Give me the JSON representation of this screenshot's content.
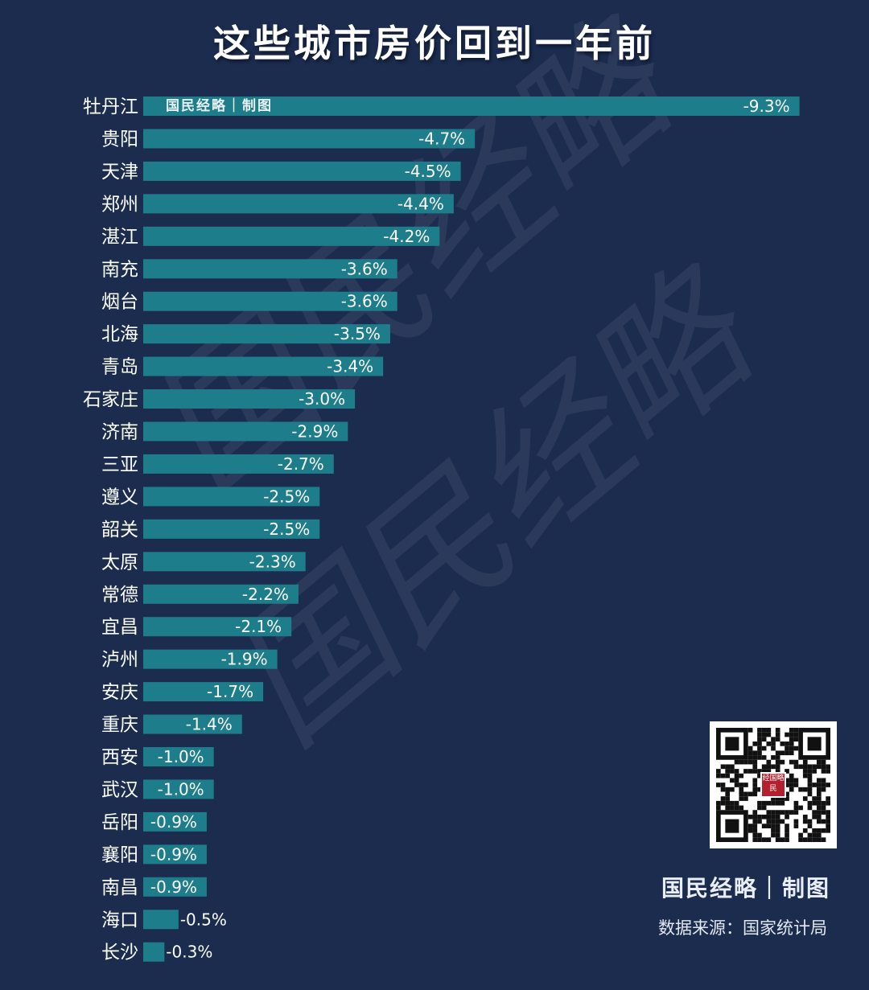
{
  "chart_data": {
    "type": "bar",
    "orientation": "horizontal",
    "title": "这些城市房价回到一年前",
    "categories": [
      "牡丹江",
      "贵阳",
      "天津",
      "郑州",
      "湛江",
      "南充",
      "烟台",
      "北海",
      "青岛",
      "石家庄",
      "济南",
      "三亚",
      "遵义",
      "韶关",
      "太原",
      "常德",
      "宜昌",
      "泸州",
      "安庆",
      "重庆",
      "西安",
      "武汉",
      "岳阳",
      "襄阳",
      "南昌",
      "海口",
      "长沙"
    ],
    "values": [
      -9.3,
      -4.7,
      -4.5,
      -4.4,
      -4.2,
      -3.6,
      -3.6,
      -3.5,
      -3.4,
      -3.0,
      -2.9,
      -2.7,
      -2.5,
      -2.5,
      -2.3,
      -2.2,
      -2.1,
      -1.9,
      -1.7,
      -1.4,
      -1.0,
      -1.0,
      -0.9,
      -0.9,
      -0.9,
      -0.5,
      -0.3
    ],
    "labels": [
      "-9.3%",
      "-4.7%",
      "-4.5%",
      "-4.4%",
      "-4.2%",
      "-3.6%",
      "-3.6%",
      "-3.5%",
      "-3.4%",
      "-3.0%",
      "-2.9%",
      "-2.7%",
      "-2.5%",
      "-2.5%",
      "-2.3%",
      "-2.2%",
      "-2.1%",
      "-1.9%",
      "-1.7%",
      "-1.4%",
      "-1.0%",
      "-1.0%",
      "-0.9%",
      "-0.9%",
      "-0.9%",
      "-0.5%",
      "-0.3%"
    ],
    "unit": "%",
    "bar_color": "#1e7d8b",
    "xlabel": "",
    "ylabel": ""
  },
  "credit_inbar": "国民经略｜制图",
  "credit": "国民经略｜制图",
  "source": "数据来源：国家统计局",
  "qr_badge": "经国略民",
  "watermark_text": "国民经略",
  "colors": {
    "background": "#1b2c4f",
    "bar": "#1e7d8b",
    "text": "#ffffff",
    "badge": "#b3202e"
  }
}
